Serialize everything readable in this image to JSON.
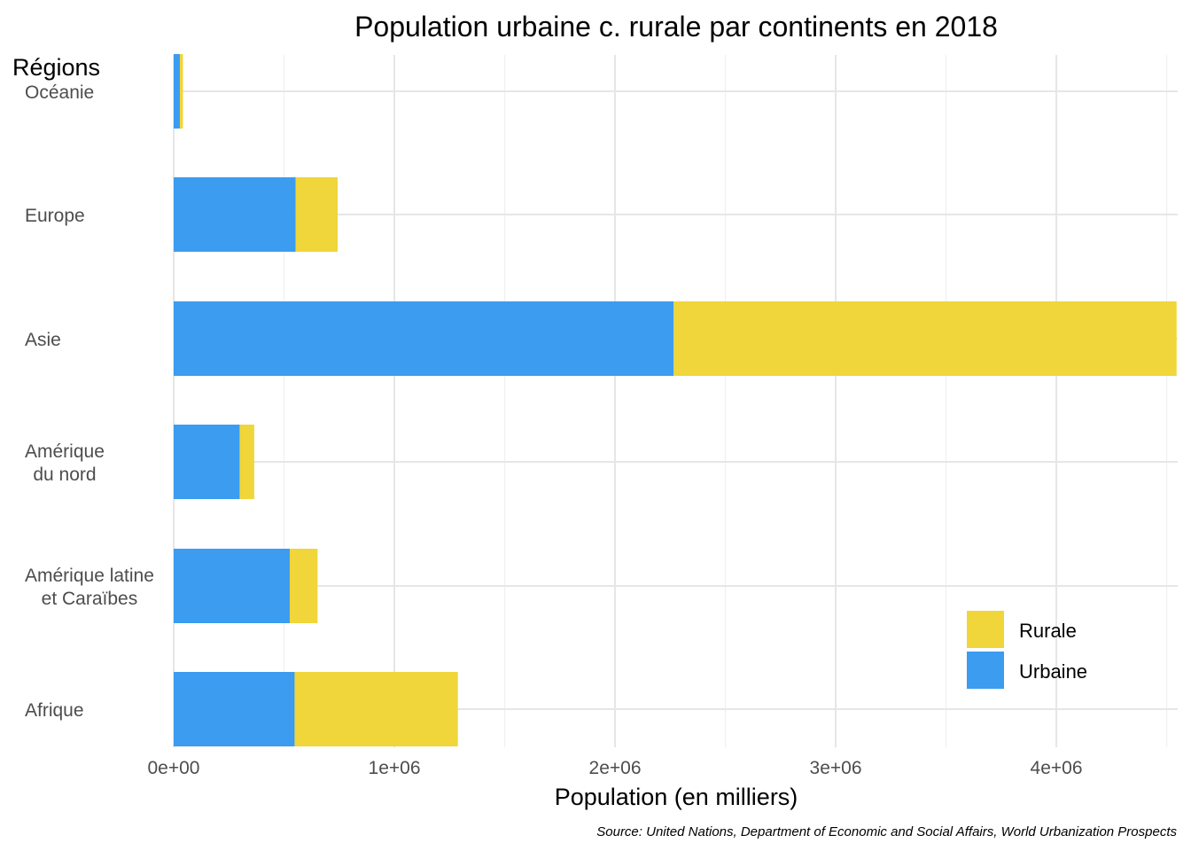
{
  "chart_data": {
    "type": "bar",
    "orientation": "horizontal",
    "stacked": true,
    "title": "Population urbaine c. rurale par continents en 2018",
    "xlabel": "Population (en milliers)",
    "ylabel": "Régions",
    "caption": "Source: United Nations, Department of Economic and Social Affairs, World Urbanization Prospects",
    "categories": [
      [
        "Océanie"
      ],
      [
        "Europe"
      ],
      [
        "Asie"
      ],
      [
        "Amérique",
        "du nord"
      ],
      [
        "Amérique latine",
        "et Caraïbes"
      ],
      [
        "Afrique"
      ]
    ],
    "series": [
      {
        "name": "Urbaine",
        "color": "#3b9cf0",
        "values": [
          28000,
          553000,
          2266000,
          299000,
          526000,
          548000
        ]
      },
      {
        "name": "Rurale",
        "color": "#f0d63a",
        "values": [
          14000,
          190000,
          2279000,
          66000,
          126000,
          740000
        ]
      }
    ],
    "xlim": [
      0,
      4550000
    ],
    "xticks": [
      0,
      1000000,
      2000000,
      3000000,
      4000000
    ],
    "xtick_labels": [
      "0e+00",
      "1e+06",
      "2e+06",
      "3e+06",
      "4e+06"
    ],
    "grid": true,
    "legend": {
      "placement": "bottom-right",
      "entries": [
        "Rurale",
        "Urbaine"
      ]
    }
  }
}
